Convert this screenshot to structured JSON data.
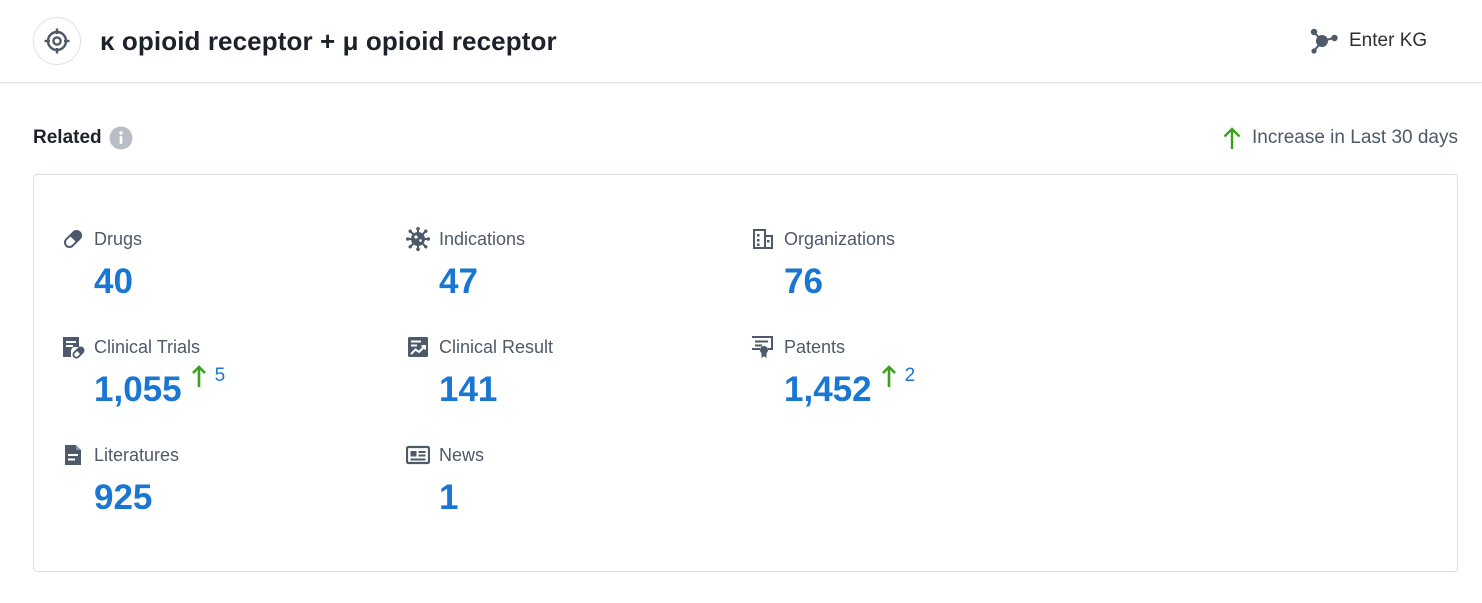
{
  "header": {
    "title": "κ opioid receptor + μ opioid receptor",
    "target_icon": "target-icon",
    "enter_kg_label": "Enter KG",
    "kg_icon": "graph-network-icon"
  },
  "related": {
    "title": "Related",
    "info_icon": "info-icon",
    "legend_label": "Increase in Last 30 days",
    "legend_icon": "arrow-up-icon",
    "stats": [
      {
        "label": "Drugs",
        "icon": "pill-icon",
        "value": "40"
      },
      {
        "label": "Indications",
        "icon": "virus-icon",
        "value": "47"
      },
      {
        "label": "Organizations",
        "icon": "building-icon",
        "value": "76"
      },
      {
        "label": "Clinical Trials",
        "icon": "clinical-trial-icon",
        "value": "1,055",
        "increase": "5"
      },
      {
        "label": "Clinical Result",
        "icon": "chart-report-icon",
        "value": "141"
      },
      {
        "label": "Patents",
        "icon": "patent-certificate-icon",
        "value": "1,452",
        "increase": "2"
      },
      {
        "label": "Literatures",
        "icon": "document-icon",
        "value": "925"
      },
      {
        "label": "News",
        "icon": "newspaper-icon",
        "value": "1"
      }
    ]
  },
  "colors": {
    "value_blue": "#1976d2",
    "increase_green": "#3ca21e",
    "icon_gray": "#4e5969",
    "border": "#dcdfe4"
  }
}
